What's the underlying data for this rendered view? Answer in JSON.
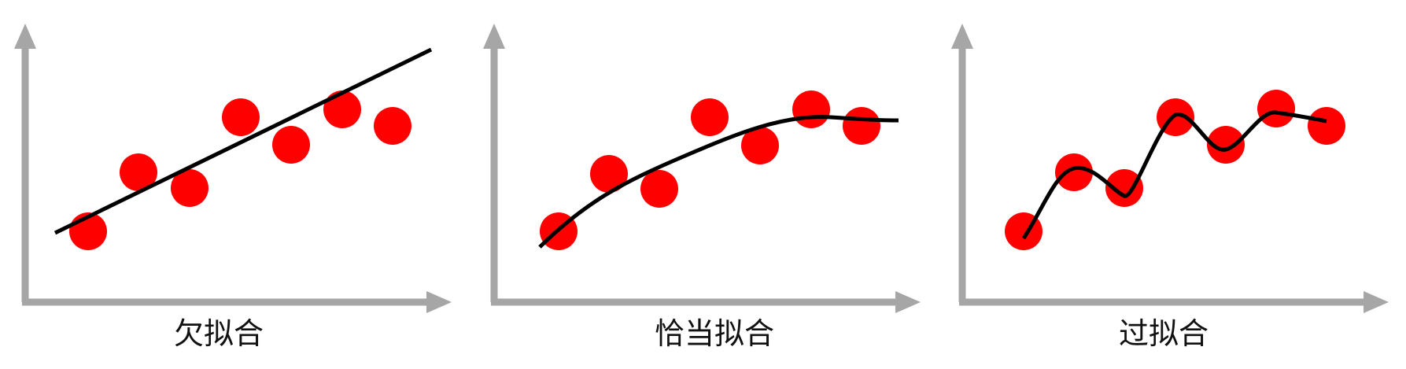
{
  "panels": [
    {
      "caption": "欠拟合",
      "fit": "line"
    },
    {
      "caption": "恰当拟合",
      "fit": "curve"
    },
    {
      "caption": "过拟合",
      "fit": "interpolating-curve"
    }
  ],
  "colors": {
    "axis": "#a6a6a6",
    "point": "#ff0000",
    "fit_line": "#000000"
  }
}
